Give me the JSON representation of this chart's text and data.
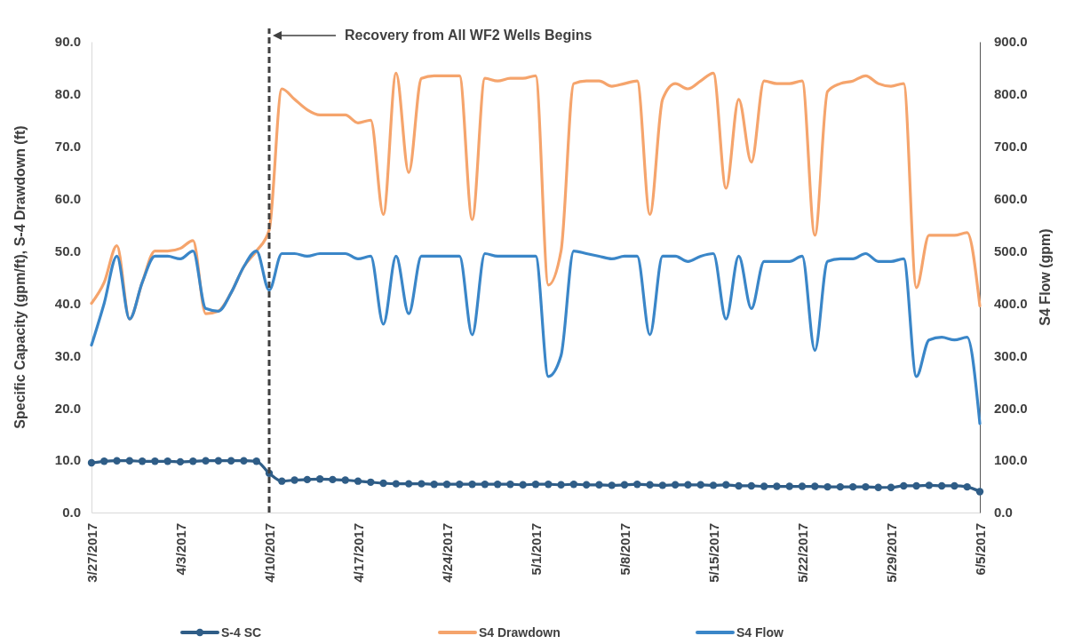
{
  "chart_data": {
    "type": "line",
    "ylabel": "Specific Capacity (gpm/ft), S-4 Drawdown (ft)",
    "y2label": "S4 Flow (gpm)",
    "x": [
      "2017-03-27",
      "2017-03-28",
      "2017-03-29",
      "2017-03-30",
      "2017-03-31",
      "2017-04-01",
      "2017-04-02",
      "2017-04-03",
      "2017-04-04",
      "2017-04-05",
      "2017-04-06",
      "2017-04-07",
      "2017-04-08",
      "2017-04-09",
      "2017-04-10",
      "2017-04-11",
      "2017-04-12",
      "2017-04-13",
      "2017-04-14",
      "2017-04-15",
      "2017-04-16",
      "2017-04-17",
      "2017-04-18",
      "2017-04-19",
      "2017-04-20",
      "2017-04-21",
      "2017-04-22",
      "2017-04-23",
      "2017-04-24",
      "2017-04-25",
      "2017-04-26",
      "2017-04-27",
      "2017-04-28",
      "2017-04-29",
      "2017-04-30",
      "2017-05-01",
      "2017-05-02",
      "2017-05-03",
      "2017-05-04",
      "2017-05-05",
      "2017-05-06",
      "2017-05-07",
      "2017-05-08",
      "2017-05-09",
      "2017-05-10",
      "2017-05-11",
      "2017-05-12",
      "2017-05-13",
      "2017-05-14",
      "2017-05-15",
      "2017-05-16",
      "2017-05-17",
      "2017-05-18",
      "2017-05-19",
      "2017-05-20",
      "2017-05-21",
      "2017-05-22",
      "2017-05-23",
      "2017-05-24",
      "2017-05-25",
      "2017-05-26",
      "2017-05-27",
      "2017-05-28",
      "2017-05-29",
      "2017-05-30",
      "2017-05-31",
      "2017-06-01",
      "2017-06-02",
      "2017-06-03",
      "2017-06-04",
      "2017-06-05"
    ],
    "series": [
      {
        "name": "S-4 SC",
        "color": "#2f5d87",
        "marker": "circle",
        "values": [
          9.5,
          9.8,
          9.9,
          9.9,
          9.8,
          9.8,
          9.8,
          9.7,
          9.8,
          9.9,
          9.9,
          9.9,
          9.9,
          9.8,
          7.5,
          6.0,
          6.2,
          6.3,
          6.4,
          6.3,
          6.2,
          6.0,
          5.8,
          5.6,
          5.5,
          5.5,
          5.5,
          5.4,
          5.4,
          5.4,
          5.4,
          5.4,
          5.4,
          5.4,
          5.3,
          5.4,
          5.4,
          5.3,
          5.4,
          5.3,
          5.3,
          5.2,
          5.3,
          5.4,
          5.3,
          5.2,
          5.3,
          5.3,
          5.3,
          5.2,
          5.3,
          5.1,
          5.1,
          5.0,
          5.0,
          5.0,
          5.0,
          5.0,
          4.9,
          4.9,
          4.9,
          4.9,
          4.8,
          4.8,
          5.1,
          5.1,
          5.2,
          5.1,
          5.1,
          4.9,
          4.0
        ]
      },
      {
        "name": "S4 Drawdown",
        "color": "#f5a46c",
        "marker": "none",
        "values": [
          40,
          44,
          51,
          37,
          44,
          50,
          50,
          50.5,
          52,
          38,
          38.5,
          42,
          47,
          50,
          54,
          81,
          79,
          77,
          76,
          76,
          76,
          74.5,
          75,
          57,
          84,
          65,
          83,
          83.5,
          83.5,
          83.5,
          56,
          83,
          82.5,
          83,
          83,
          83.5,
          43.5,
          50,
          82,
          82.5,
          82.5,
          81.5,
          82,
          82.5,
          57,
          79,
          82,
          81,
          82.5,
          84,
          62,
          79,
          67,
          82.5,
          82,
          82,
          82.5,
          53,
          80.5,
          82,
          82.5,
          83.5,
          82,
          81.5,
          82,
          43,
          53,
          53,
          53,
          53.5,
          39.5
        ]
      },
      {
        "name": "S4 Flow",
        "color": "#3a86c8",
        "marker": "none",
        "axis": "y2",
        "values": [
          320,
          400,
          490,
          370,
          440,
          490,
          490,
          485,
          500,
          390,
          385,
          420,
          470,
          500,
          425,
          495,
          495,
          490,
          495,
          495,
          495,
          485,
          490,
          360,
          490,
          380,
          490,
          490,
          490,
          490,
          340,
          495,
          490,
          490,
          490,
          490,
          260,
          300,
          500,
          495,
          490,
          485,
          490,
          490,
          340,
          490,
          490,
          480,
          490,
          495,
          370,
          490,
          390,
          480,
          480,
          480,
          490,
          310,
          480,
          485,
          485,
          495,
          480,
          480,
          485,
          260,
          330,
          335,
          330,
          335,
          170
        ]
      }
    ],
    "xlim": [
      "2017-03-27",
      "2017-06-05"
    ],
    "xticks": [
      {
        "value": "2017-03-27",
        "label": "3/27/2017"
      },
      {
        "value": "2017-04-03",
        "label": "4/3/2017"
      },
      {
        "value": "2017-04-10",
        "label": "4/10/2017"
      },
      {
        "value": "2017-04-17",
        "label": "4/17/2017"
      },
      {
        "value": "2017-04-24",
        "label": "4/24/2017"
      },
      {
        "value": "2017-05-01",
        "label": "5/1/2017"
      },
      {
        "value": "2017-05-08",
        "label": "5/8/2017"
      },
      {
        "value": "2017-05-15",
        "label": "5/15/2017"
      },
      {
        "value": "2017-05-22",
        "label": "5/22/2017"
      },
      {
        "value": "2017-05-29",
        "label": "5/29/2017"
      },
      {
        "value": "2017-06-05",
        "label": "6/5/2017"
      }
    ],
    "ylim": [
      0,
      90
    ],
    "yticks": [
      {
        "value": 0,
        "label": "0.0"
      },
      {
        "value": 10,
        "label": "10.0"
      },
      {
        "value": 20,
        "label": "20.0"
      },
      {
        "value": 30,
        "label": "30.0"
      },
      {
        "value": 40,
        "label": "40.0"
      },
      {
        "value": 50,
        "label": "50.0"
      },
      {
        "value": 60,
        "label": "60.0"
      },
      {
        "value": 70,
        "label": "70.0"
      },
      {
        "value": 80,
        "label": "80.0"
      },
      {
        "value": 90,
        "label": "90.0"
      }
    ],
    "y2lim": [
      0,
      900
    ],
    "y2ticks": [
      {
        "value": 0,
        "label": "0.0"
      },
      {
        "value": 100,
        "label": "100.0"
      },
      {
        "value": 200,
        "label": "200.0"
      },
      {
        "value": 300,
        "label": "300.0"
      },
      {
        "value": 400,
        "label": "400.0"
      },
      {
        "value": 500,
        "label": "500.0"
      },
      {
        "value": 600,
        "label": "600.0"
      },
      {
        "value": 700,
        "label": "700.0"
      },
      {
        "value": 800,
        "label": "800.0"
      },
      {
        "value": 900,
        "label": "900.0"
      }
    ],
    "ref_lines": [
      {
        "axis": "x",
        "value": "2017-04-10",
        "label": "Recovery from All WF2 Wells Begins",
        "color": "#404040",
        "line_style": "dashed"
      }
    ],
    "line_style": "solid",
    "legend": "bottom"
  }
}
